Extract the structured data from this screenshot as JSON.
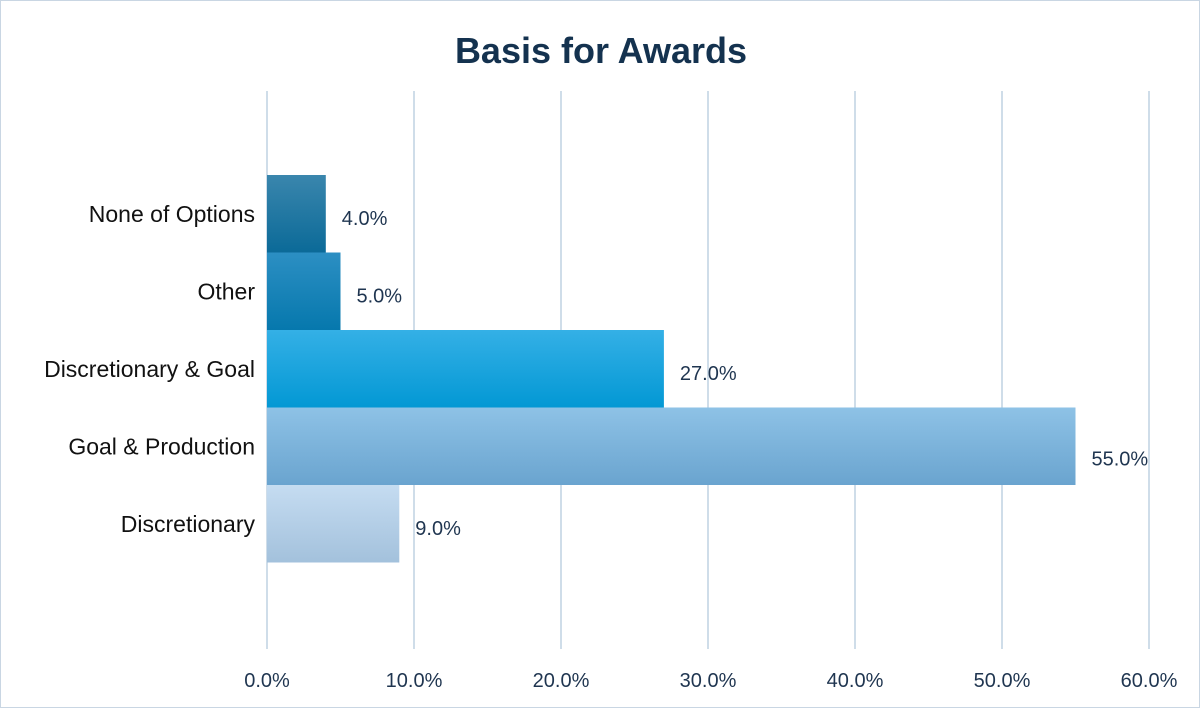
{
  "chart_data": {
    "type": "bar",
    "orientation": "horizontal",
    "title": "Basis for Awards",
    "categories": [
      "None of Options",
      "Other",
      "Discretionary & Goal",
      "Goal & Production",
      "Discretionary"
    ],
    "values": [
      4.0,
      5.0,
      27.0,
      55.0,
      9.0
    ],
    "value_labels": [
      "4.0%",
      "5.0%",
      "27.0%",
      "55.0%",
      "9.0%"
    ],
    "xlabel": "",
    "ylabel": "",
    "xlim": [
      0,
      60
    ],
    "x_ticks": [
      0,
      10,
      20,
      30,
      40,
      50,
      60
    ],
    "x_tick_labels": [
      "0.0%",
      "10.0%",
      "20.0%",
      "30.0%",
      "40.0%",
      "50.0%",
      "60.0%"
    ],
    "grid": true,
    "legend": "none",
    "colors": [
      [
        "#3a86ad",
        "#0b6a98"
      ],
      [
        "#2c8fc3",
        "#0678ad"
      ],
      [
        "#34b0e6",
        "#0398d4"
      ],
      [
        "#8ec2e6",
        "#6aa4cf"
      ],
      [
        "#c5dcf1",
        "#a3c1dc"
      ]
    ]
  }
}
